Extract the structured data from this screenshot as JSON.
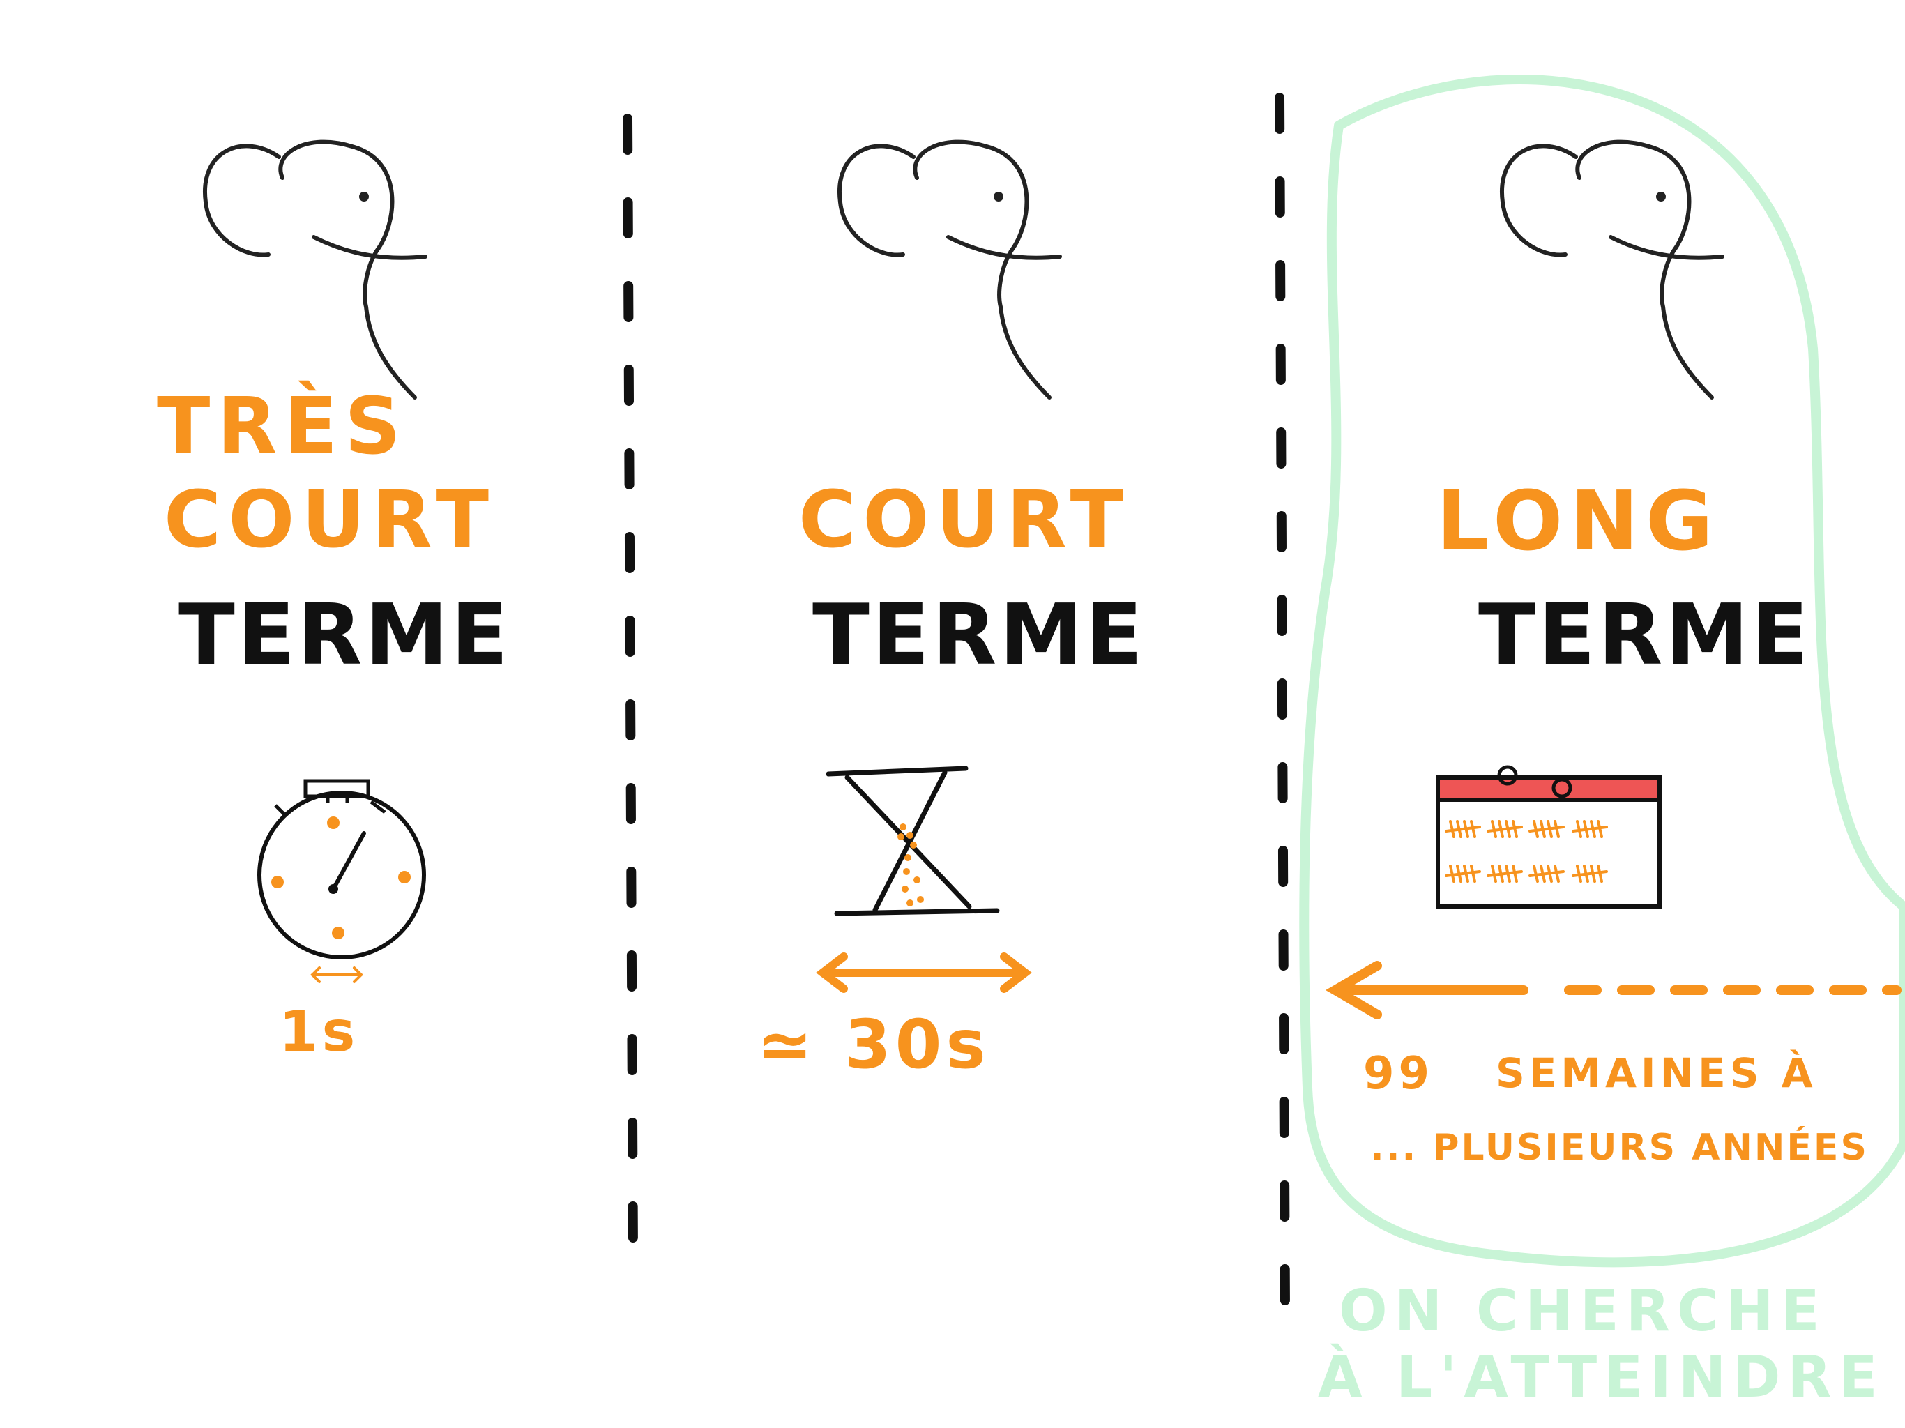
{
  "columns": [
    {
      "title_lines": [
        "TRÈS",
        "COURT"
      ],
      "term": "TERME",
      "icon": "stopwatch-icon",
      "duration": "1s"
    },
    {
      "title_lines": [
        "COURT"
      ],
      "term": "TERME",
      "icon": "hourglass-icon",
      "duration": "≃ 30s"
    },
    {
      "title_lines": [
        "LONG"
      ],
      "term": "TERME",
      "icon": "calendar-icon",
      "range_start": "99",
      "range_text": "SEMAINES À",
      "range_end": "... PLUSIEURS ANNÉES"
    }
  ],
  "goal": {
    "line1": "ON CHERCHE",
    "line2": "À L'ATTEINDRE"
  },
  "colors": {
    "accent": "#f7931e",
    "ink": "#111111",
    "highlight": "#c8f4d6",
    "calendar_header": "#ee5555"
  }
}
